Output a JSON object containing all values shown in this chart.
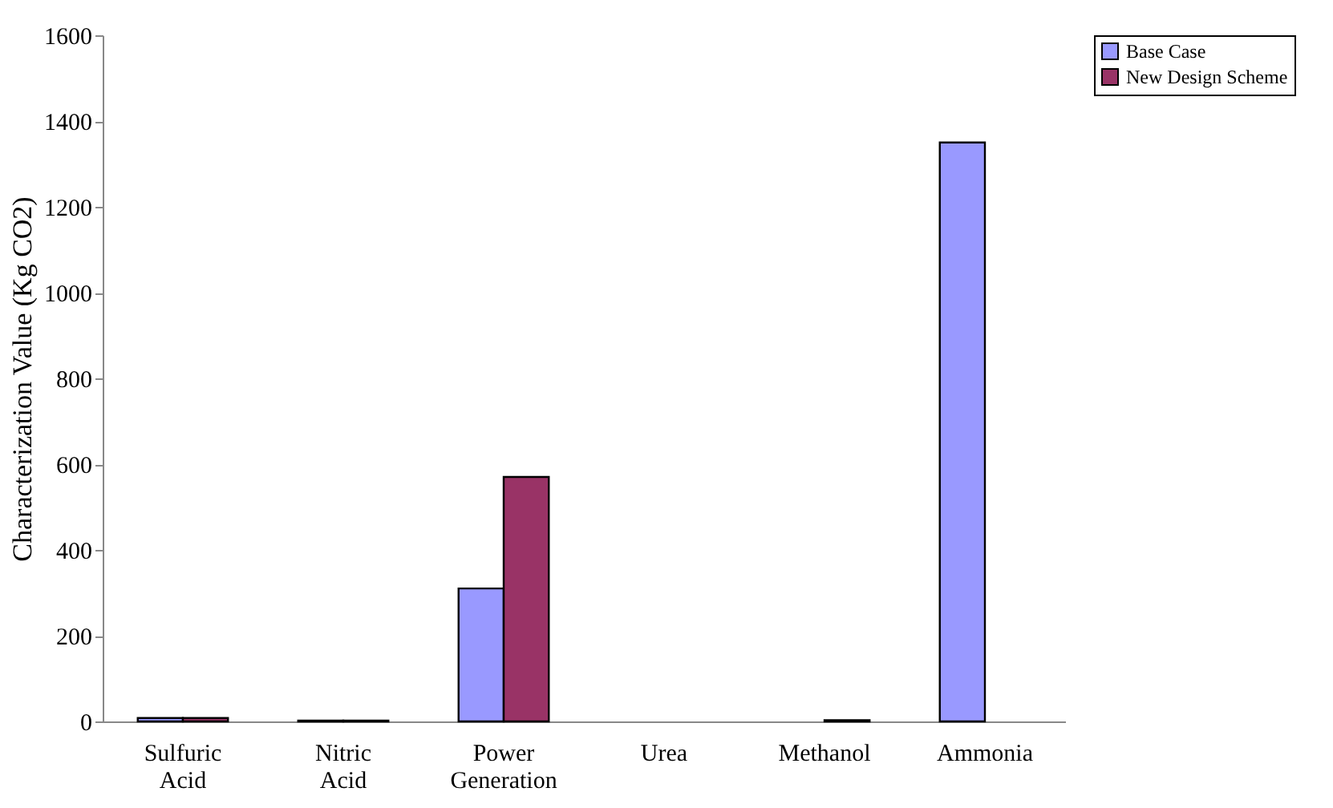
{
  "chart_data": {
    "type": "bar",
    "ylabel": "Characterization Value (Kg CO2)",
    "categories": [
      "Sulfuric Acid",
      "Nitric Acid",
      "Power Generation",
      "Urea",
      "Methanol",
      "Ammonia"
    ],
    "series": [
      {
        "name": "Base Case",
        "color": "#9999ff",
        "values": [
          8,
          2,
          310,
          null,
          null,
          1350
        ]
      },
      {
        "name": "New Design Scheme",
        "color": "#993366",
        "values": [
          8,
          2,
          570,
          null,
          3,
          null
        ]
      }
    ],
    "ylim": [
      0,
      1600
    ],
    "yticks": [
      0,
      200,
      400,
      600,
      800,
      1000,
      1200,
      1400,
      1600
    ],
    "grid": false,
    "legend": "right"
  }
}
